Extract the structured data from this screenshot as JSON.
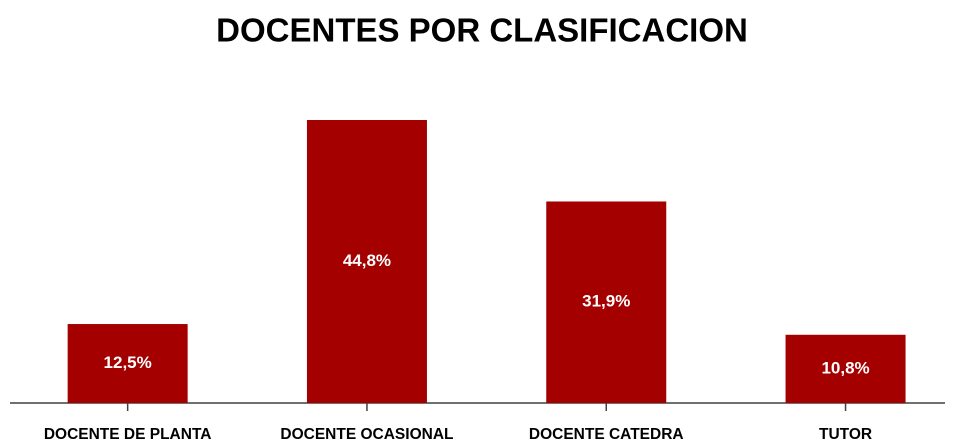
{
  "chart_data": {
    "type": "bar",
    "title": "DOCENTES POR CLASIFICACION",
    "categories": [
      "DOCENTE DE PLANTA",
      "DOCENTE OCASIONAL",
      "DOCENTE CATEDRA",
      "TUTOR"
    ],
    "values": [
      12.5,
      44.8,
      31.9,
      10.8
    ],
    "value_labels": [
      "12,5%",
      "44,8%",
      "31,9%",
      "10,8%"
    ],
    "color": "#a50000"
  }
}
